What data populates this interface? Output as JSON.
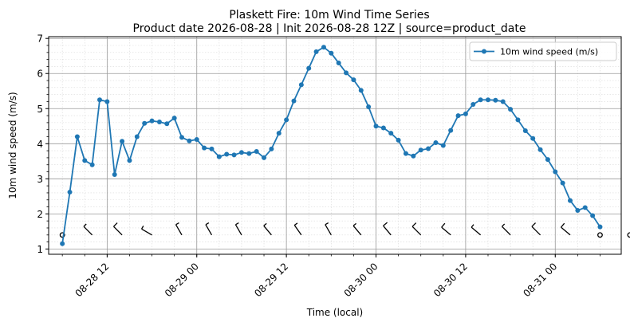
{
  "chart_data": {
    "type": "line",
    "title": "Plaskett Fire: 10m Wind Time Series",
    "subtitle": "Product date 2026-08-28 | Init 2026-08-28 12Z | source=product_date",
    "xlabel": "Time (local)",
    "ylabel": "10m wind speed (m/s)",
    "ylim": [
      0.85,
      7.05
    ],
    "xlim": [
      "2026-08-28 04:10",
      "2026-08-31 08:50"
    ],
    "yticks": [
      1,
      2,
      3,
      4,
      5,
      6,
      7
    ],
    "xticks": [
      {
        "t": "2026-08-28 12:00",
        "label": "08-28 12"
      },
      {
        "t": "2026-08-29 00:00",
        "label": "08-29 00"
      },
      {
        "t": "2026-08-29 12:00",
        "label": "08-29 12"
      },
      {
        "t": "2026-08-30 00:00",
        "label": "08-30 00"
      },
      {
        "t": "2026-08-30 12:00",
        "label": "08-30 12"
      },
      {
        "t": "2026-08-31 00:00",
        "label": "08-31 00"
      }
    ],
    "grid": true,
    "legend_position": "top-right",
    "color": "#1f77b4",
    "series": [
      {
        "name": "10m wind speed (m/s)",
        "t0": "2026-08-28 06:00",
        "step_hours": 1,
        "values": [
          1.15,
          2.62,
          4.2,
          3.52,
          3.4,
          5.25,
          5.2,
          3.12,
          4.07,
          3.52,
          4.2,
          4.58,
          4.65,
          4.62,
          4.57,
          4.73,
          4.18,
          4.08,
          4.12,
          3.88,
          3.85,
          3.63,
          3.7,
          3.68,
          3.75,
          3.72,
          3.78,
          3.6,
          3.85,
          4.3,
          4.68,
          5.22,
          5.68,
          6.15,
          6.62,
          6.75,
          6.58,
          6.3,
          6.02,
          5.82,
          5.52,
          5.05,
          4.5,
          4.45,
          4.3,
          4.1,
          3.72,
          3.65,
          3.82,
          3.86,
          4.03,
          3.95,
          4.38,
          4.8,
          4.85,
          5.12,
          5.25,
          5.25,
          5.24,
          5.2,
          4.98,
          4.68,
          4.37,
          4.15,
          3.83,
          3.55,
          3.2,
          2.88,
          2.38,
          2.1,
          2.18,
          1.95,
          1.63
        ]
      }
    ],
    "wind_barbs": {
      "y": 1.4,
      "t0": "2026-08-28 06:00",
      "step_hours": 4,
      "direction_deg": [
        null,
        315,
        315,
        300,
        330,
        330,
        330,
        320,
        325,
        330,
        320,
        320,
        315,
        310,
        310,
        315,
        315,
        310,
        null,
        null
      ],
      "speed_ms": [
        1.3,
        3.5,
        5.2,
        4.2,
        4.6,
        4.7,
        4.1,
        3.8,
        3.7,
        3.7,
        4.7,
        6.6,
        6.1,
        5.1,
        3.7,
        4.0,
        5.2,
        5.2,
        3.8,
        1.9
      ]
    }
  }
}
